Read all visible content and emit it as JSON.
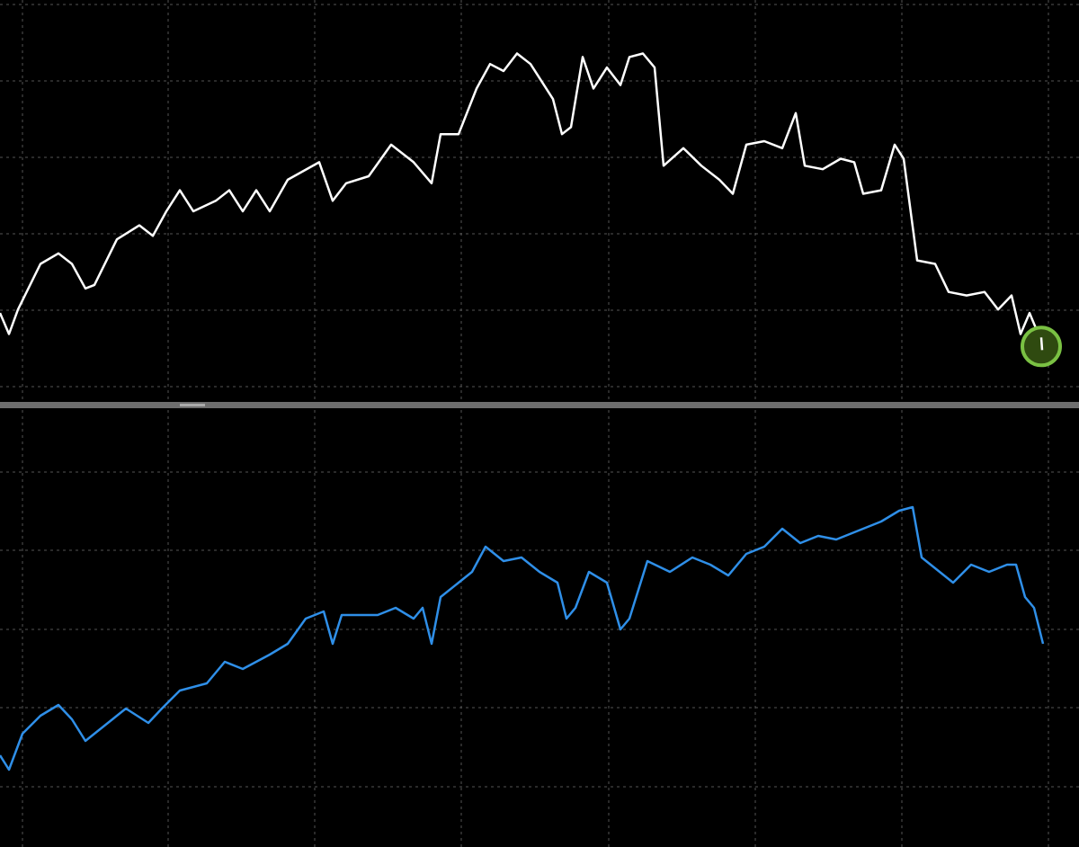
{
  "chart_data": [
    {
      "type": "line",
      "panel": "top",
      "title": "",
      "xlabel": "",
      "ylabel": "",
      "grid": true,
      "line_color": "#ffffff",
      "marker": {
        "shape": "circle",
        "color": "#7ac143",
        "at": "last-point"
      },
      "x": [
        0,
        1,
        2,
        4.5,
        6.5,
        8,
        9.5,
        10.5,
        13,
        15.5,
        17,
        18.5,
        20,
        21.5,
        24,
        25.5,
        27,
        28.5,
        30,
        32,
        35.5,
        37,
        38.5,
        41,
        43.5,
        46,
        48,
        49,
        51,
        53,
        54.5,
        56,
        57.5,
        59,
        60.5,
        61.5,
        62.5,
        63.5,
        64.8,
        66,
        67.5,
        69,
        70,
        71.5,
        72.8,
        73.8,
        76,
        78,
        80,
        81.5,
        83,
        85,
        87,
        88.5,
        89.5,
        91.5,
        93.5,
        95,
        96,
        98,
        99.5,
        100.5,
        102,
        104,
        105.5,
        107.5,
        109.5,
        111,
        112.5,
        113.5,
        114.5,
        115.8
      ],
      "y": [
        21,
        15,
        22,
        35,
        38,
        35,
        28,
        29,
        42,
        46,
        43,
        50,
        56,
        50,
        53,
        56,
        50,
        56,
        50,
        59,
        64,
        53,
        58,
        60,
        69,
        64,
        58,
        72,
        72,
        85,
        92,
        90,
        95,
        92,
        86,
        82,
        72,
        74,
        94,
        85,
        91,
        86,
        94,
        95,
        91,
        63,
        68,
        63,
        59,
        55,
        69,
        70,
        68,
        78,
        63,
        62,
        65,
        64,
        55,
        56,
        69,
        65,
        36,
        35,
        27,
        26,
        27,
        22,
        26,
        15,
        21,
        13
      ],
      "ylim": [
        0,
        100
      ]
    },
    {
      "type": "line",
      "panel": "bottom",
      "title": "",
      "xlabel": "",
      "ylabel": "",
      "grid": true,
      "line_color": "#2f8fe8",
      "x": [
        0,
        1,
        2.5,
        4.5,
        6.5,
        8,
        9.5,
        11.5,
        14,
        16.5,
        18,
        20,
        23,
        25,
        27,
        30,
        32,
        34,
        36,
        37,
        38,
        42,
        44,
        46,
        47,
        48,
        49,
        51,
        52.5,
        54,
        56,
        58,
        60,
        62,
        63,
        64,
        65.5,
        67.5,
        69,
        70,
        72,
        74.5,
        77,
        79,
        81,
        83,
        85,
        87,
        89,
        91,
        93,
        96,
        98,
        100,
        101.5,
        102.5,
        104.5,
        106,
        108,
        110,
        112,
        113,
        114,
        115,
        116
      ],
      "y": [
        25,
        21,
        31,
        36,
        39,
        35,
        29,
        33,
        38,
        34,
        38,
        43,
        45,
        51,
        49,
        53,
        56,
        63,
        65,
        56,
        64,
        64,
        66,
        63,
        66,
        56,
        69,
        73,
        76,
        83,
        79,
        80,
        76,
        73,
        63,
        66,
        76,
        73,
        60,
        63,
        79,
        76,
        80,
        78,
        75,
        81,
        83,
        88,
        84,
        86,
        85,
        88,
        90,
        93,
        94,
        80,
        76,
        73,
        78,
        76,
        78,
        78,
        69,
        66,
        56
      ],
      "ylim": [
        0,
        100
      ]
    }
  ],
  "colors": {
    "background": "#000000",
    "grid": "#555555",
    "divider": "#6e6e6e"
  }
}
